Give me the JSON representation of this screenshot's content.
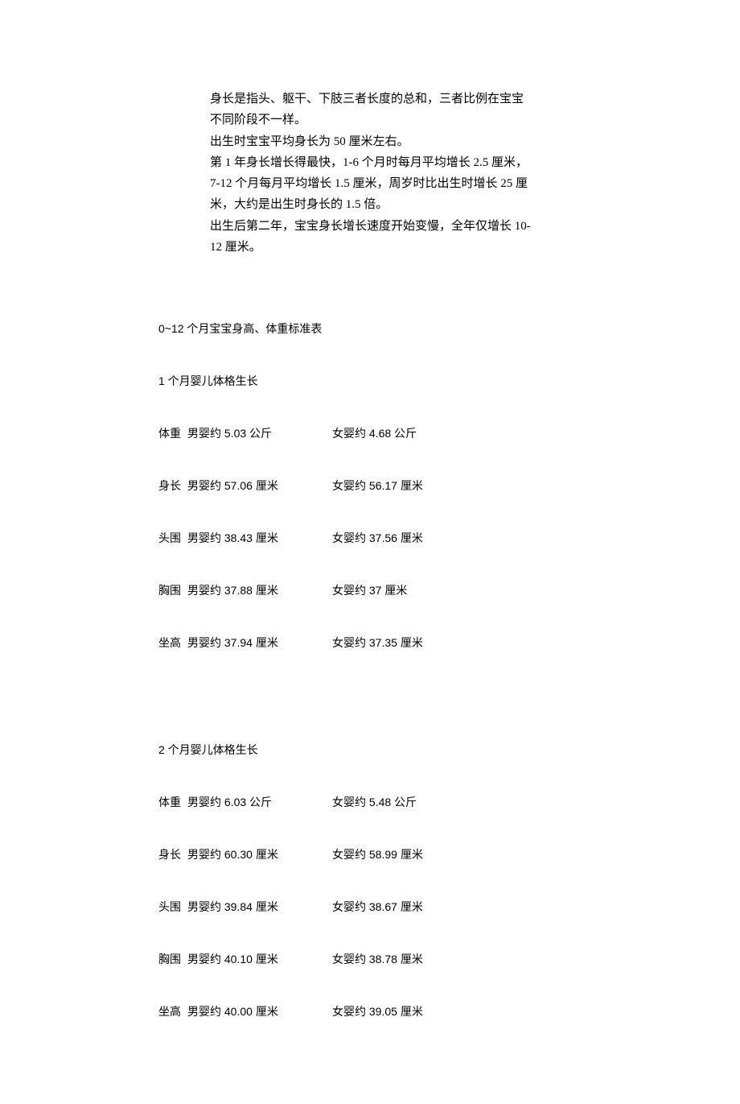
{
  "intro": {
    "p1": "身长是指头、躯干、下肢三者长度的总和，三者比例在宝宝不同阶段不一样。",
    "p2": "出生时宝宝平均身长为 50 厘米左右。",
    "p3": "第 1 年身长增长得最快，1-6 个月时每月平均增长 2.5 厘米，7-12 个月每月平均增长 1.5 厘米，周岁时比出生时增长 25 厘米，大约是出生时身长的 1.5 倍。",
    "p4": "出生后第二年，宝宝身长增长速度开始变慢，全年仅增长 10-12 厘米。"
  },
  "title": "0~12 个月宝宝身高、体重标准表",
  "labels": {
    "weight": "体重",
    "length": "身长",
    "head": "头围",
    "chest": "胸围",
    "sit": "坐高"
  },
  "month1": {
    "heading": "1 个月婴儿体格生长",
    "weight": {
      "male": "男婴约 5.03 公斤",
      "female": "女婴约 4.68 公斤"
    },
    "length": {
      "male": "男婴约 57.06 厘米",
      "female": "女婴约 56.17 厘米"
    },
    "head": {
      "male": "男婴约 38.43 厘米",
      "female": "女婴约 37.56 厘米"
    },
    "chest": {
      "male": "男婴约 37.88 厘米",
      "female": "女婴约 37 厘米"
    },
    "sit": {
      "male": "男婴约 37.94 厘米",
      "female": "女婴约 37.35 厘米"
    }
  },
  "month2": {
    "heading": "2 个月婴儿体格生长",
    "weight": {
      "male": "男婴约 6.03 公斤",
      "female": "女婴约 5.48 公斤"
    },
    "length": {
      "male": "男婴约 60.30 厘米",
      "female": "女婴约 58.99 厘米"
    },
    "head": {
      "male": "男婴约 39.84 厘米",
      "female": "女婴约 38.67 厘米"
    },
    "chest": {
      "male": "男婴约 40.10 厘米",
      "female": "女婴约 38.78 厘米"
    },
    "sit": {
      "male": "男婴约 40.00 厘米",
      "female": "女婴约 39.05 厘米"
    }
  }
}
